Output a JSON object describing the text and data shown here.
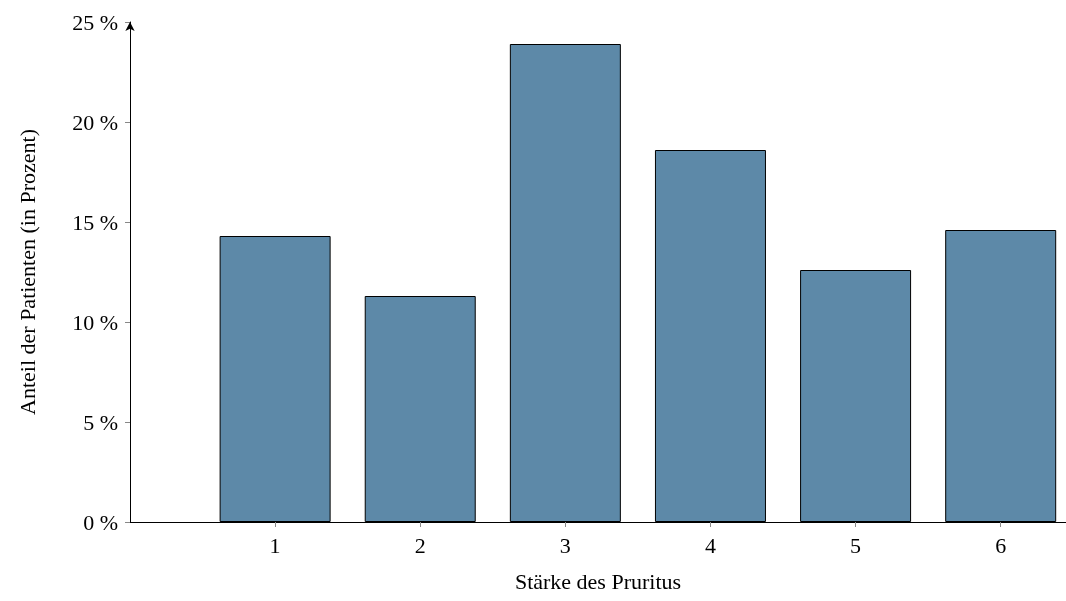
{
  "chart_data": {
    "type": "bar",
    "xlabel": "Stärke des Pruritus",
    "ylabel": "Anteil der Patienten (in Prozent)",
    "x": [
      1,
      2,
      3,
      4,
      5,
      6
    ],
    "values": [
      14.3,
      11.3,
      23.9,
      18.6,
      12.6,
      14.6
    ],
    "color": "#5d89a8",
    "xlim": [
      0,
      6.45
    ],
    "xticks": [
      1,
      2,
      3,
      4,
      5,
      6
    ],
    "ylim": [
      0,
      25
    ],
    "yticks": [
      {
        "value": 0,
        "label": "0 %"
      },
      {
        "value": 5,
        "label": "5 %"
      },
      {
        "value": 10,
        "label": "10 %"
      },
      {
        "value": 15,
        "label": "15 %"
      },
      {
        "value": 20,
        "label": "20 %"
      },
      {
        "value": 25,
        "label": "25 %"
      }
    ],
    "marker": "none"
  }
}
